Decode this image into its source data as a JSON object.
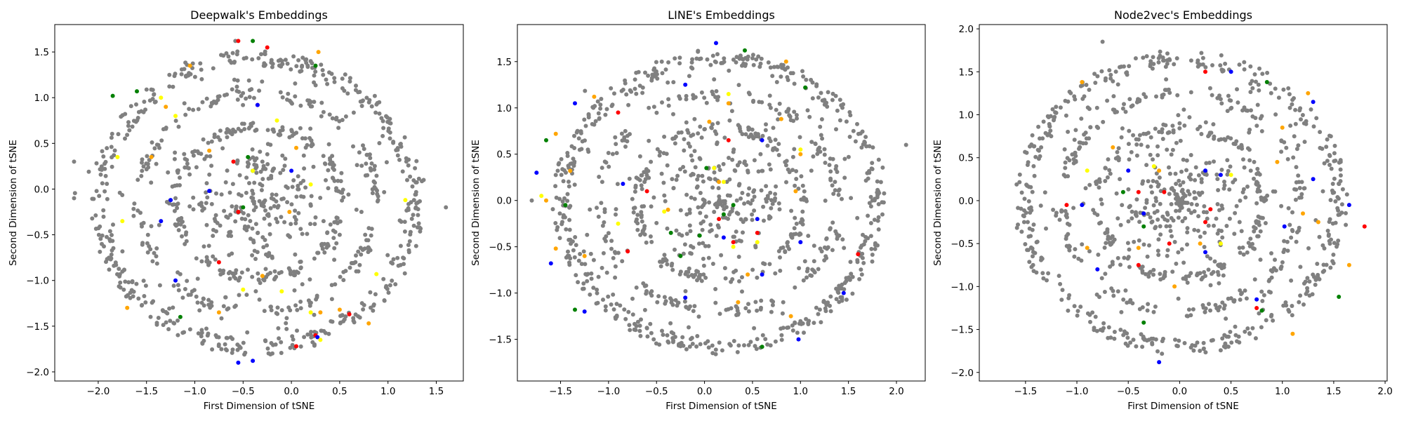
{
  "chart_data": [
    {
      "type": "scatter",
      "title": "Deepwalk's Embeddings",
      "xlabel": "First Dimension of tSNE",
      "ylabel": "Second Dimension of tSNE",
      "xlim": [
        -2.45,
        1.78
      ],
      "ylim": [
        -2.1,
        1.8
      ],
      "xticks": [
        -2.0,
        -1.5,
        -1.0,
        -0.5,
        0.0,
        0.5,
        1.0,
        1.5
      ],
      "yticks": [
        -2.0,
        -1.5,
        -1.0,
        -0.5,
        0.0,
        0.5,
        1.0,
        1.5
      ],
      "seed": 11,
      "point_count": 1150,
      "series": [
        {
          "color": "#808080",
          "points": [
            [
              1.6,
              -0.2
            ],
            [
              -2.25,
              0.3
            ],
            [
              -2.25,
              -0.1
            ],
            [
              -0.58,
              1.62
            ],
            [
              0.2,
              1.4
            ],
            [
              -0.3,
              0.3
            ],
            [
              -1.2,
              -0.1
            ],
            [
              0.5,
              -0.5
            ]
          ]
        },
        {
          "color": "#ff0000",
          "points": [
            [
              -0.55,
              1.62
            ],
            [
              -0.25,
              1.55
            ],
            [
              -0.6,
              0.3
            ],
            [
              -0.55,
              -0.25
            ],
            [
              -0.75,
              -0.8
            ],
            [
              0.05,
              -1.72
            ],
            [
              0.25,
              -1.6
            ],
            [
              0.6,
              -1.37
            ],
            [
              -0.35,
              0.92
            ]
          ]
        },
        {
          "color": "#008000",
          "points": [
            [
              -0.4,
              1.62
            ],
            [
              0.25,
              1.35
            ],
            [
              -1.85,
              1.02
            ],
            [
              -1.6,
              1.07
            ],
            [
              -0.45,
              0.35
            ],
            [
              -0.5,
              -0.2
            ],
            [
              -1.15,
              -1.4
            ],
            [
              -0.4,
              0.2
            ]
          ]
        },
        {
          "color": "#0000ff",
          "points": [
            [
              -0.35,
              0.92
            ],
            [
              -0.85,
              -0.02
            ],
            [
              0.0,
              0.2
            ],
            [
              -1.35,
              -0.35
            ],
            [
              -0.55,
              -1.9
            ],
            [
              -0.4,
              -1.88
            ],
            [
              0.27,
              -1.62
            ],
            [
              -1.2,
              -1.0
            ],
            [
              -1.25,
              -0.12
            ]
          ]
        },
        {
          "color": "#ffa500",
          "points": [
            [
              0.28,
              1.5
            ],
            [
              -1.05,
              1.35
            ],
            [
              -1.3,
              0.9
            ],
            [
              -0.85,
              0.42
            ],
            [
              0.05,
              0.45
            ],
            [
              -1.45,
              0.35
            ],
            [
              -1.7,
              -1.3
            ],
            [
              -0.75,
              -1.35
            ],
            [
              0.3,
              -1.35
            ],
            [
              0.8,
              -1.47
            ],
            [
              -0.3,
              -0.95
            ],
            [
              -0.02,
              -0.25
            ],
            [
              0.5,
              -1.32
            ]
          ]
        },
        {
          "color": "#ffff00",
          "points": [
            [
              -1.35,
              1.0
            ],
            [
              -1.2,
              0.8
            ],
            [
              -1.8,
              0.35
            ],
            [
              -0.4,
              0.2
            ],
            [
              0.2,
              0.05
            ],
            [
              1.18,
              -0.12
            ],
            [
              -1.75,
              -0.35
            ],
            [
              -0.5,
              -1.1
            ],
            [
              -0.1,
              -1.12
            ],
            [
              0.2,
              -1.35
            ],
            [
              0.88,
              -0.93
            ],
            [
              0.3,
              -1.65
            ],
            [
              -0.15,
              0.75
            ]
          ]
        }
      ]
    },
    {
      "type": "scatter",
      "title": "LINE's Embeddings",
      "xlabel": "First Dimension of tSNE",
      "ylabel": "Second Dimension of tSNE",
      "xlim": [
        -1.95,
        2.3
      ],
      "ylim": [
        -1.95,
        1.9
      ],
      "xticks": [
        -1.5,
        -1.0,
        -0.5,
        0.0,
        0.5,
        1.0,
        1.5,
        2.0
      ],
      "yticks": [
        -1.5,
        -1.0,
        -0.5,
        0.0,
        0.5,
        1.0,
        1.5
      ],
      "seed": 23,
      "point_count": 1150,
      "series": [
        {
          "color": "#808080",
          "points": [
            [
              2.1,
              0.6
            ],
            [
              1.75,
              0.0
            ],
            [
              -1.8,
              0.0
            ],
            [
              0.0,
              0.0
            ]
          ]
        },
        {
          "color": "#ff0000",
          "points": [
            [
              0.25,
              0.65
            ],
            [
              -0.6,
              0.1
            ],
            [
              0.15,
              -0.2
            ],
            [
              0.55,
              -0.35
            ],
            [
              0.3,
              -0.45
            ],
            [
              1.6,
              -0.58
            ],
            [
              -0.8,
              -0.55
            ],
            [
              -0.9,
              0.95
            ]
          ]
        },
        {
          "color": "#008000",
          "points": [
            [
              0.42,
              1.62
            ],
            [
              1.05,
              1.22
            ],
            [
              -1.65,
              0.65
            ],
            [
              -1.45,
              -0.05
            ],
            [
              0.3,
              -0.05
            ],
            [
              0.2,
              -0.15
            ],
            [
              -0.35,
              -0.35
            ],
            [
              -0.25,
              -0.6
            ],
            [
              -0.05,
              -0.38
            ],
            [
              0.6,
              -1.58
            ],
            [
              -1.35,
              -1.18
            ],
            [
              0.02,
              0.35
            ]
          ]
        },
        {
          "color": "#0000ff",
          "points": [
            [
              -1.35,
              1.05
            ],
            [
              0.12,
              1.7
            ],
            [
              -0.2,
              1.25
            ],
            [
              -1.75,
              0.3
            ],
            [
              -0.85,
              0.18
            ],
            [
              0.6,
              0.65
            ],
            [
              0.55,
              -0.2
            ],
            [
              0.6,
              -0.8
            ],
            [
              1.0,
              -0.45
            ],
            [
              1.45,
              -1.0
            ],
            [
              0.98,
              -1.5
            ],
            [
              -1.6,
              -0.68
            ],
            [
              -1.25,
              -1.2
            ],
            [
              -0.2,
              -1.05
            ],
            [
              0.2,
              -0.4
            ]
          ]
        },
        {
          "color": "#ffa500",
          "points": [
            [
              -1.15,
              1.12
            ],
            [
              0.25,
              1.05
            ],
            [
              0.85,
              1.5
            ],
            [
              0.8,
              0.88
            ],
            [
              1.0,
              0.5
            ],
            [
              -1.55,
              0.72
            ],
            [
              0.95,
              0.1
            ],
            [
              -1.4,
              0.32
            ],
            [
              -1.65,
              0.0
            ],
            [
              -0.38,
              -0.1
            ],
            [
              0.05,
              0.85
            ],
            [
              0.35,
              -1.1
            ],
            [
              -1.55,
              -0.52
            ],
            [
              -1.25,
              -0.6
            ],
            [
              0.45,
              -0.8
            ],
            [
              0.9,
              -1.25
            ],
            [
              0.15,
              0.2
            ]
          ]
        },
        {
          "color": "#ffff00",
          "points": [
            [
              0.25,
              1.15
            ],
            [
              0.1,
              0.35
            ],
            [
              1.0,
              0.55
            ],
            [
              -0.42,
              -0.12
            ],
            [
              -0.9,
              -0.25
            ],
            [
              0.2,
              0.2
            ],
            [
              0.55,
              -0.45
            ],
            [
              0.3,
              -0.5
            ],
            [
              -1.7,
              0.05
            ]
          ]
        }
      ]
    },
    {
      "type": "scatter",
      "title": "Node2vec's Embeddings",
      "xlabel": "First Dimension of tSNE",
      "ylabel": "Second Dimension of tSNE",
      "xlim": [
        -1.95,
        2.02
      ],
      "ylim": [
        -2.1,
        2.05
      ],
      "xticks": [
        -1.5,
        -1.0,
        -0.5,
        0.0,
        0.5,
        1.0,
        1.5,
        2.0
      ],
      "yticks": [
        -2.0,
        -1.5,
        -1.0,
        -0.5,
        0.0,
        0.5,
        1.0,
        1.5,
        2.0
      ],
      "seed": 37,
      "point_count": 1100,
      "series": [
        {
          "color": "#808080",
          "points": [
            [
              -0.75,
              1.85
            ],
            [
              -1.25,
              0.75
            ],
            [
              0.0,
              0.9
            ],
            [
              -0.2,
              0.8
            ]
          ]
        },
        {
          "color": "#ff0000",
          "points": [
            [
              0.25,
              1.5
            ],
            [
              -0.4,
              0.1
            ],
            [
              -0.15,
              0.1
            ],
            [
              -1.1,
              -0.05
            ],
            [
              0.3,
              -0.1
            ],
            [
              0.25,
              -0.25
            ],
            [
              -0.1,
              -0.5
            ],
            [
              1.8,
              -0.3
            ],
            [
              -0.4,
              -0.75
            ],
            [
              0.75,
              -1.25
            ]
          ]
        },
        {
          "color": "#008000",
          "points": [
            [
              0.85,
              1.38
            ],
            [
              -0.55,
              0.1
            ],
            [
              -0.35,
              -0.3
            ],
            [
              1.55,
              -1.12
            ],
            [
              -0.35,
              -1.42
            ],
            [
              0.8,
              -1.28
            ]
          ]
        },
        {
          "color": "#0000ff",
          "points": [
            [
              0.5,
              1.5
            ],
            [
              1.3,
              1.15
            ],
            [
              -0.95,
              -0.05
            ],
            [
              0.25,
              0.35
            ],
            [
              0.4,
              0.3
            ],
            [
              -0.5,
              0.35
            ],
            [
              -0.35,
              -0.15
            ],
            [
              1.65,
              -0.05
            ],
            [
              0.25,
              -0.6
            ],
            [
              0.75,
              -1.15
            ],
            [
              -0.8,
              -0.8
            ],
            [
              -0.2,
              -1.88
            ],
            [
              1.3,
              0.25
            ],
            [
              1.02,
              -0.3
            ]
          ]
        },
        {
          "color": "#ffa500",
          "points": [
            [
              -0.95,
              1.38
            ],
            [
              1.25,
              1.25
            ],
            [
              1.0,
              0.85
            ],
            [
              -0.65,
              0.62
            ],
            [
              0.95,
              0.45
            ],
            [
              -0.2,
              0.35
            ],
            [
              1.2,
              -0.15
            ],
            [
              1.35,
              -0.25
            ],
            [
              -0.9,
              -0.55
            ],
            [
              -0.4,
              -0.55
            ],
            [
              0.2,
              -0.5
            ],
            [
              -0.05,
              -1.0
            ],
            [
              1.1,
              -1.55
            ],
            [
              1.65,
              -0.75
            ]
          ]
        },
        {
          "color": "#ffff00",
          "points": [
            [
              -0.25,
              0.4
            ],
            [
              0.5,
              0.3
            ],
            [
              0.4,
              -0.5
            ],
            [
              -0.9,
              0.35
            ]
          ]
        }
      ]
    }
  ]
}
